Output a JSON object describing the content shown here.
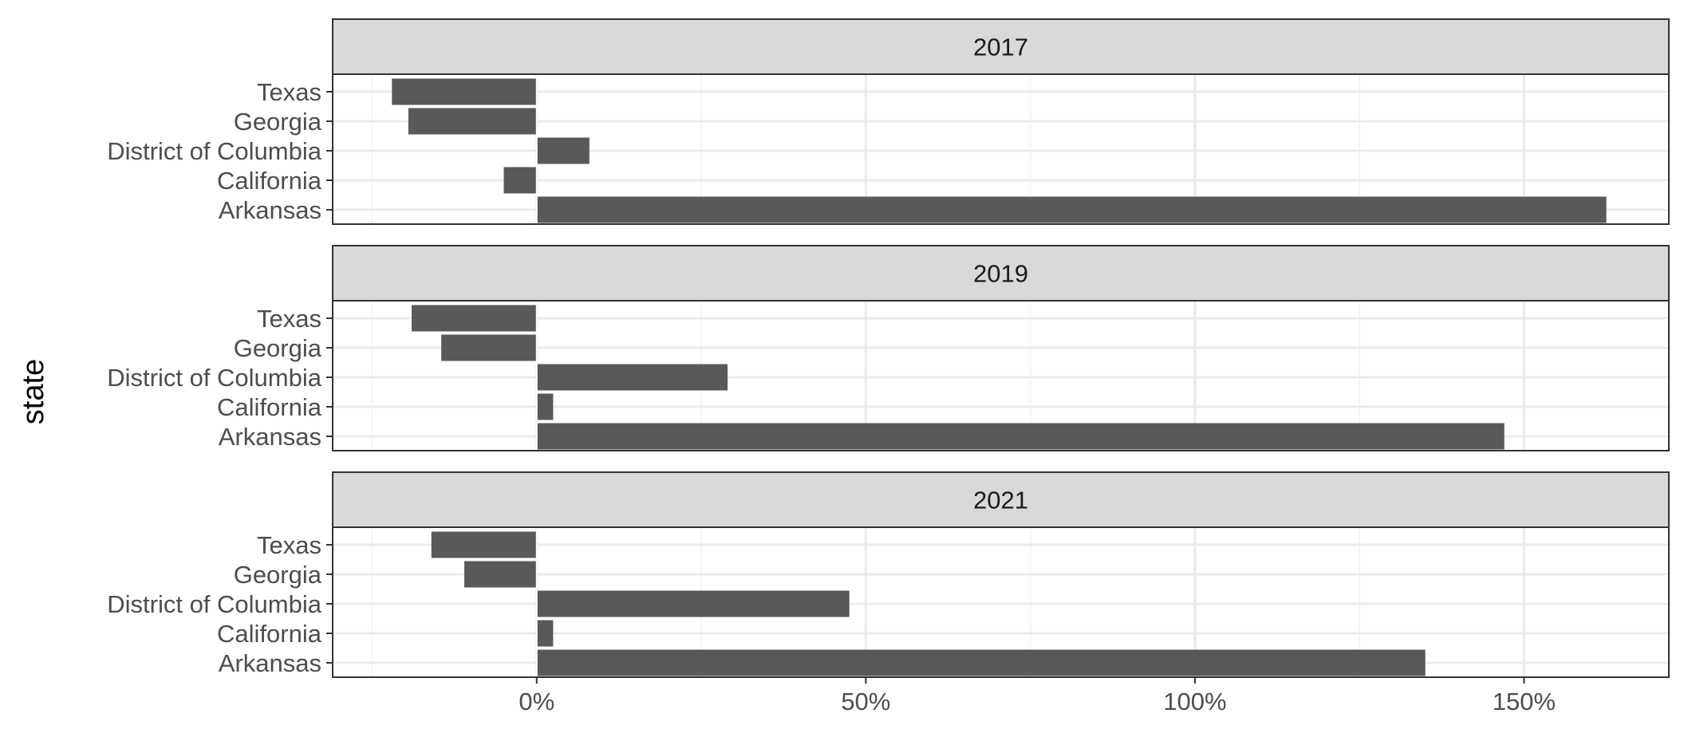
{
  "chart_data": {
    "type": "bar",
    "orientation": "horizontal",
    "ylabel": "state",
    "xlabel": "",
    "categories": [
      "Texas",
      "Georgia",
      "District of Columbia",
      "California",
      "Arkansas"
    ],
    "x_ticks": [
      0,
      50,
      100,
      150
    ],
    "x_tick_labels": [
      "0%",
      "50%",
      "100%",
      "150%"
    ],
    "xlim": [
      -31,
      172
    ],
    "grid": true,
    "panels": [
      {
        "label": "2017",
        "values": [
          -22,
          -19.5,
          8,
          -5,
          162.5
        ]
      },
      {
        "label": "2019",
        "values": [
          -19,
          -14.5,
          29,
          2.5,
          147
        ]
      },
      {
        "label": "2021",
        "values": [
          -16,
          -11,
          47.5,
          2.5,
          135
        ]
      }
    ],
    "colors": {
      "bar": "#595959",
      "strip": "#d9d9d9",
      "grid": "#ebebeb",
      "border": "#333333"
    }
  }
}
